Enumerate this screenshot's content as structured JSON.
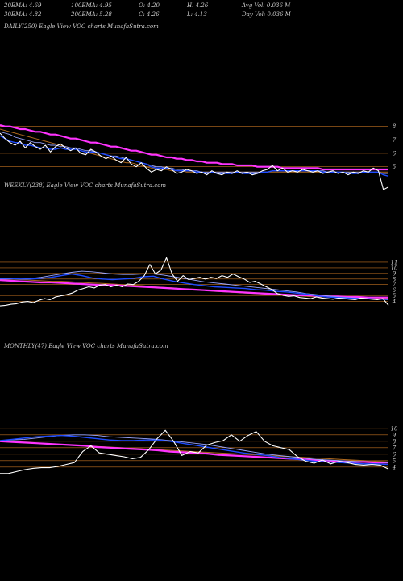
{
  "header": {
    "stats": [
      {
        "label": "20EMA:",
        "value": "4.69"
      },
      {
        "label": "100EMA:",
        "value": "4.95"
      },
      {
        "label": "O:",
        "value": "4.20"
      },
      {
        "label": "H:",
        "value": "4.26"
      },
      {
        "label": "Avg Vol:",
        "value": "0.036 M"
      },
      {
        "label": "30EMA:",
        "value": "4.82"
      },
      {
        "label": "200EMA:",
        "value": "5.28"
      },
      {
        "label": "C:",
        "value": "4.26"
      },
      {
        "label": "L:",
        "value": "4.13"
      },
      {
        "label": "Day Vol:",
        "value": "0.036 M"
      }
    ]
  },
  "colors": {
    "background": "#000000",
    "price": "#ffffff",
    "ema_short": "#1e4bff",
    "ema_mid": "#9aa6ff",
    "ema_long": "#ff33ff",
    "ema_200": "#b06a1e",
    "level_line": "#c07020",
    "label_text": "#cfcfcf"
  },
  "chart_data": [
    {
      "type": "line",
      "title": "DAILY(250) Eagle   View VOC charts MunafaSutra.com",
      "y_ticks": [
        8,
        7,
        6,
        5
      ],
      "ylim": [
        3.0,
        9.0
      ],
      "series": [
        {
          "key": "price",
          "values": [
            7.5,
            7.1,
            6.8,
            6.6,
            6.9,
            6.4,
            6.8,
            6.5,
            6.3,
            6.6,
            6.1,
            6.5,
            6.7,
            6.4,
            6.2,
            6.4,
            6.0,
            5.9,
            6.3,
            6.1,
            5.8,
            5.6,
            5.8,
            5.5,
            5.3,
            5.7,
            5.2,
            5.0,
            5.3,
            4.9,
            4.6,
            4.8,
            4.7,
            5.0,
            4.8,
            4.5,
            4.6,
            4.8,
            4.7,
            4.5,
            4.6,
            4.4,
            4.7,
            4.5,
            4.4,
            4.6,
            4.5,
            4.7,
            4.5,
            4.6,
            4.4,
            4.5,
            4.7,
            4.8,
            5.1,
            4.7,
            4.9,
            4.6,
            4.7,
            4.6,
            4.8,
            4.7,
            4.6,
            4.7,
            4.5,
            4.6,
            4.7,
            4.5,
            4.6,
            4.4,
            4.6,
            4.5,
            4.7,
            4.6,
            4.9,
            4.7,
            3.3,
            3.5
          ]
        },
        {
          "key": "ema_short",
          "values": [
            7.3,
            7.1,
            6.9,
            6.8,
            6.8,
            6.6,
            6.6,
            6.5,
            6.4,
            6.4,
            6.3,
            6.3,
            6.4,
            6.3,
            6.3,
            6.3,
            6.2,
            6.1,
            6.1,
            6.1,
            6.0,
            5.9,
            5.8,
            5.7,
            5.6,
            5.6,
            5.5,
            5.4,
            5.3,
            5.2,
            5.0,
            4.9,
            4.9,
            4.9,
            4.8,
            4.7,
            4.7,
            4.7,
            4.7,
            4.6,
            4.6,
            4.5,
            4.6,
            4.5,
            4.5,
            4.5,
            4.5,
            4.6,
            4.5,
            4.5,
            4.5,
            4.5,
            4.6,
            4.6,
            4.7,
            4.7,
            4.7,
            4.7,
            4.7,
            4.7,
            4.7,
            4.7,
            4.7,
            4.7,
            4.6,
            4.6,
            4.6,
            4.6,
            4.6,
            4.5,
            4.5,
            4.5,
            4.6,
            4.6,
            4.6,
            4.6,
            4.4,
            4.3
          ]
        },
        {
          "key": "ema_mid",
          "values": [
            7.6,
            7.5,
            7.4,
            7.2,
            7.1,
            7.0,
            6.9,
            6.8,
            6.8,
            6.7,
            6.6,
            6.6,
            6.5,
            6.5,
            6.4,
            6.4,
            6.3,
            6.2,
            6.2,
            6.1,
            6.0,
            5.9,
            5.8,
            5.8,
            5.7,
            5.6,
            5.5,
            5.4,
            5.3,
            5.2,
            5.1,
            5.0,
            5.0,
            4.9,
            4.9,
            4.8,
            4.8,
            4.7,
            4.7,
            4.7,
            4.6,
            4.6,
            4.6,
            4.6,
            4.6,
            4.6,
            4.6,
            4.6,
            4.6,
            4.6,
            4.6,
            4.6,
            4.6,
            4.6,
            4.7,
            4.7,
            4.7,
            4.7,
            4.7,
            4.7,
            4.7,
            4.7,
            4.7,
            4.7,
            4.7,
            4.6,
            4.6,
            4.6,
            4.6,
            4.6,
            4.6,
            4.6,
            4.6,
            4.6,
            4.6,
            4.6,
            4.5,
            4.5
          ]
        },
        {
          "key": "ema_long",
          "values": [
            8.1,
            8.0,
            8.0,
            7.9,
            7.8,
            7.8,
            7.7,
            7.6,
            7.6,
            7.5,
            7.4,
            7.4,
            7.3,
            7.2,
            7.1,
            7.1,
            7.0,
            6.9,
            6.8,
            6.8,
            6.7,
            6.6,
            6.5,
            6.5,
            6.4,
            6.3,
            6.2,
            6.2,
            6.1,
            6.0,
            5.9,
            5.9,
            5.8,
            5.7,
            5.7,
            5.6,
            5.6,
            5.5,
            5.5,
            5.4,
            5.4,
            5.3,
            5.3,
            5.3,
            5.2,
            5.2,
            5.2,
            5.1,
            5.1,
            5.1,
            5.1,
            5.0,
            5.0,
            5.0,
            5.0,
            5.0,
            4.9,
            4.9,
            4.9,
            4.9,
            4.9,
            4.9,
            4.9,
            4.9,
            4.8,
            4.8,
            4.8,
            4.8,
            4.8,
            4.8,
            4.8,
            4.8,
            4.8,
            4.8,
            4.8,
            4.8,
            4.8,
            4.8
          ]
        },
        {
          "key": "ema_200",
          "values": [
            7.8,
            7.7,
            7.6,
            7.5,
            7.4,
            7.3,
            7.2,
            7.1,
            7.0,
            6.9,
            6.8,
            6.7,
            6.6,
            6.5,
            6.4,
            6.3,
            6.2,
            6.1,
            6.0,
            5.9,
            5.8,
            5.7,
            5.6,
            5.5,
            5.4,
            5.3,
            5.3,
            5.2,
            5.1,
            5.0,
            4.9,
            4.9,
            4.8,
            4.8,
            4.7,
            4.7,
            4.7,
            4.6,
            4.6,
            4.6,
            4.6,
            4.6,
            4.6,
            4.6,
            4.6,
            4.6,
            4.6,
            4.6,
            4.6,
            4.6,
            4.6,
            4.6,
            4.6,
            4.6,
            4.6,
            4.6,
            4.6,
            4.6,
            4.6,
            4.6,
            4.6,
            4.6,
            4.6,
            4.6,
            4.6,
            4.6,
            4.6,
            4.6,
            4.6,
            4.6,
            4.6,
            4.6,
            4.6,
            4.6,
            4.6,
            4.6,
            4.6,
            4.6
          ]
        }
      ]
    },
    {
      "type": "line",
      "title": "WEEKLY(238) Eagle   View VOC charts MunafaSutra.com",
      "y_ticks": [
        11,
        10,
        9,
        8,
        7,
        6,
        5,
        4
      ],
      "ylim": [
        2.5,
        12.0
      ],
      "series": [
        {
          "key": "price",
          "values": [
            3.2,
            3.3,
            3.5,
            3.6,
            3.9,
            4.0,
            3.8,
            4.2,
            4.5,
            4.3,
            4.8,
            5.0,
            5.2,
            5.5,
            6.0,
            6.3,
            6.6,
            6.4,
            6.9,
            7.0,
            6.6,
            6.9,
            6.6,
            7.1,
            7.0,
            7.6,
            8.6,
            10.6,
            8.9,
            9.6,
            11.8,
            8.9,
            7.6,
            8.6,
            7.9,
            8.1,
            8.3,
            8.0,
            8.3,
            8.1,
            8.6,
            8.3,
            8.9,
            8.4,
            8.0,
            7.4,
            7.6,
            7.1,
            6.6,
            6.1,
            5.4,
            5.1,
            4.9,
            5.0,
            4.7,
            4.6,
            4.5,
            4.8,
            4.6,
            4.5,
            4.4,
            4.6,
            4.5,
            4.4,
            4.3,
            4.6,
            4.5,
            4.4,
            4.3,
            4.5,
            3.3
          ]
        },
        {
          "key": "ema_short",
          "values": [
            8.1,
            8.1,
            8.0,
            8.0,
            8.1,
            8.3,
            8.6,
            8.9,
            8.6,
            8.2,
            8.0,
            7.9,
            8.0,
            8.1,
            8.4,
            8.5,
            8.0,
            7.6,
            7.3,
            7.0,
            6.8,
            6.6,
            6.5,
            6.4,
            6.3,
            6.1,
            6.0,
            5.8,
            5.7,
            5.5,
            5.3,
            5.0,
            4.8,
            4.7,
            4.6,
            4.5,
            4.5,
            4.4,
            4.4
          ]
        },
        {
          "key": "ema_mid",
          "values": [
            8.0,
            8.0,
            8.0,
            8.1,
            8.3,
            8.6,
            8.9,
            9.2,
            9.4,
            9.3,
            9.1,
            8.9,
            8.8,
            8.8,
            8.9,
            8.9,
            8.7,
            8.4,
            8.1,
            7.8,
            7.5,
            7.3,
            7.1,
            6.9,
            6.7,
            6.5,
            6.3,
            6.1,
            5.9,
            5.7,
            5.4,
            5.2,
            5.0,
            4.8,
            4.7,
            4.6,
            4.5,
            4.4,
            4.3
          ]
        },
        {
          "key": "ema_long",
          "values": [
            7.8,
            7.7,
            7.6,
            7.5,
            7.4,
            7.4,
            7.3,
            7.2,
            7.1,
            7.0,
            6.9,
            6.9,
            6.8,
            6.7,
            6.6,
            6.5,
            6.4,
            6.3,
            6.2,
            6.1,
            6.0,
            5.9,
            5.8,
            5.7,
            5.6,
            5.5,
            5.4,
            5.3,
            5.2,
            5.1,
            5.1,
            5.0,
            4.9,
            4.9,
            4.8,
            4.8,
            4.7,
            4.7,
            4.7
          ]
        },
        {
          "key": "ema_200",
          "values": [
            8.0,
            8.0,
            7.9,
            7.8,
            7.7,
            7.6,
            7.6,
            7.5,
            7.4,
            7.3,
            7.2,
            7.1,
            7.0,
            6.9,
            6.8,
            6.6,
            6.5,
            6.4,
            6.2,
            6.1,
            6.0,
            5.8,
            5.7,
            5.6,
            5.5,
            5.4,
            5.3,
            5.2,
            5.1,
            5.0,
            4.9,
            4.8,
            4.8,
            4.7,
            4.7,
            4.6,
            4.6,
            4.6,
            4.5
          ]
        }
      ]
    },
    {
      "type": "line",
      "title": "MONTHLY(47) Eagle   View VOC charts MunafaSutra.com",
      "y_ticks": [
        10,
        9,
        8,
        7,
        6,
        5,
        4
      ],
      "ylim": [
        2.6,
        11.6
      ],
      "series": [
        {
          "key": "price",
          "values": [
            3.0,
            3.0,
            3.3,
            3.6,
            3.8,
            3.9,
            3.9,
            4.1,
            4.4,
            4.7,
            6.4,
            7.3,
            6.2,
            6.0,
            5.8,
            5.6,
            5.3,
            5.5,
            6.7,
            8.4,
            9.7,
            8.0,
            5.8,
            6.4,
            6.2,
            7.4,
            7.8,
            8.1,
            9.0,
            8.0,
            8.9,
            9.5,
            8.0,
            7.3,
            7.0,
            6.7,
            5.6,
            4.9,
            4.6,
            5.1,
            4.5,
            4.9,
            4.7,
            4.4,
            4.3,
            4.4,
            4.3,
            3.7
          ]
        },
        {
          "key": "ema_short",
          "values": [
            8.1,
            8.3,
            8.5,
            8.7,
            8.8,
            8.9,
            8.8,
            8.6,
            8.4,
            8.2,
            8.1,
            8.1,
            8.2,
            8.2,
            8.0,
            7.7,
            7.4,
            7.1,
            6.8,
            6.5,
            6.2,
            6.0,
            5.8,
            5.5,
            5.3,
            5.1,
            4.9,
            4.8,
            4.7,
            4.6,
            4.5,
            4.5,
            4.4
          ]
        },
        {
          "key": "ema_mid",
          "values": [
            8.1,
            8.2,
            8.3,
            8.5,
            8.7,
            8.9,
            9.0,
            9.0,
            8.9,
            8.7,
            8.6,
            8.5,
            8.4,
            8.3,
            8.1,
            7.9,
            7.7,
            7.5,
            7.2,
            6.9,
            6.6,
            6.3,
            6.0,
            5.8,
            5.6,
            5.4,
            5.2,
            5.1,
            5.0,
            4.9,
            4.8,
            4.8,
            4.7
          ]
        },
        {
          "key": "ema_long",
          "values": [
            8.0,
            7.9,
            7.8,
            7.7,
            7.6,
            7.5,
            7.4,
            7.3,
            7.1,
            7.0,
            6.9,
            6.8,
            6.7,
            6.6,
            6.4,
            6.3,
            6.2,
            6.1,
            5.9,
            5.8,
            5.7,
            5.6,
            5.5,
            5.4,
            5.3,
            5.2,
            5.1,
            5.0,
            4.9,
            4.8,
            4.8,
            4.7,
            4.7
          ]
        },
        {
          "key": "ema_200",
          "values": [
            8.0,
            7.9,
            7.8,
            7.7,
            7.6,
            7.5,
            7.4,
            7.3,
            7.2,
            7.1,
            7.0,
            6.9,
            6.8,
            6.7,
            6.6,
            6.5,
            6.4,
            6.3,
            6.2,
            6.1,
            6.0,
            5.9,
            5.8,
            5.7,
            5.6,
            5.5,
            5.4,
            5.3,
            5.2,
            5.1,
            5.0,
            4.9,
            4.8
          ]
        }
      ]
    }
  ]
}
